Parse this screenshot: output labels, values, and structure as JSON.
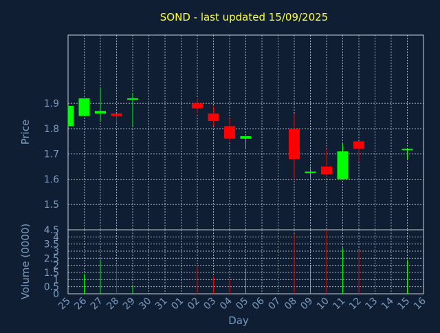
{
  "chart_data": {
    "type": "candlestick",
    "title": "SOND - last updated 15/09/2025",
    "xlabel": "Day",
    "price_ylabel": "Price",
    "volume_ylabel": "Volume (0000)",
    "colors": {
      "background": "#0f1e33",
      "title": "#ffff33",
      "axis_text": "#7a9cc0",
      "frame": "#c8d2dc",
      "grid": "#c8d2dc",
      "up": "#00ff00",
      "down": "#ff0000"
    },
    "grid": true,
    "x_ticks": [
      "25",
      "26",
      "27",
      "28",
      "29",
      "30",
      "31",
      "01",
      "02",
      "03",
      "04",
      "05",
      "06",
      "07",
      "08",
      "09",
      "10",
      "11",
      "12",
      "13",
      "14",
      "15",
      "16"
    ],
    "price_ylim": [
      1.4,
      2.17
    ],
    "price_yticks": [
      "1.5",
      "1.6",
      "1.7",
      "1.8",
      "1.9"
    ],
    "volume_ylim": [
      0,
      4.5
    ],
    "volume_yticks": [
      "0",
      "0.5",
      "1",
      "1.5",
      "2",
      "2.5",
      "3",
      "3.5",
      "4",
      "4.5"
    ],
    "candles": [
      {
        "day": "25",
        "open": 1.81,
        "high": 1.89,
        "low": 1.81,
        "close": 1.89,
        "volume": 0
      },
      {
        "day": "26",
        "open": 1.85,
        "high": 1.92,
        "low": 1.85,
        "close": 1.92,
        "volume": 1.4
      },
      {
        "day": "27",
        "open": 1.86,
        "high": 1.96,
        "low": 1.83,
        "close": 1.87,
        "volume": 2.4
      },
      {
        "day": "28",
        "open": 1.86,
        "high": 1.86,
        "low": 1.82,
        "close": 1.85,
        "volume": 2.1
      },
      {
        "day": "29",
        "open": 1.92,
        "high": 1.94,
        "low": 1.81,
        "close": 1.92,
        "volume": 0.6
      },
      {
        "day": "02",
        "open": 1.9,
        "high": 1.92,
        "low": 1.86,
        "close": 1.88,
        "volume": 2.0
      },
      {
        "day": "03",
        "open": 1.86,
        "high": 1.89,
        "low": 1.81,
        "close": 1.83,
        "volume": 1.2
      },
      {
        "day": "04",
        "open": 1.81,
        "high": 1.84,
        "low": 1.75,
        "close": 1.76,
        "volume": 1.0
      },
      {
        "day": "05",
        "open": 1.76,
        "high": 1.77,
        "low": 1.72,
        "close": 1.77,
        "volume": 1.8
      },
      {
        "day": "08",
        "open": 1.8,
        "high": 1.86,
        "low": 1.6,
        "close": 1.68,
        "volume": 4.2
      },
      {
        "day": "09",
        "open": 1.63,
        "high": 1.65,
        "low": 1.6,
        "close": 1.63,
        "volume": 1.9
      },
      {
        "day": "10",
        "open": 1.65,
        "high": 1.72,
        "low": 1.61,
        "close": 1.62,
        "volume": 4.5
      },
      {
        "day": "11",
        "open": 1.6,
        "high": 1.74,
        "low": 1.6,
        "close": 1.71,
        "volume": 3.2
      },
      {
        "day": "12",
        "open": 1.75,
        "high": 1.75,
        "low": 1.67,
        "close": 1.72,
        "volume": 3.1
      },
      {
        "day": "15",
        "open": 1.72,
        "high": 1.72,
        "low": 1.68,
        "close": 1.72,
        "volume": 2.4
      }
    ]
  }
}
